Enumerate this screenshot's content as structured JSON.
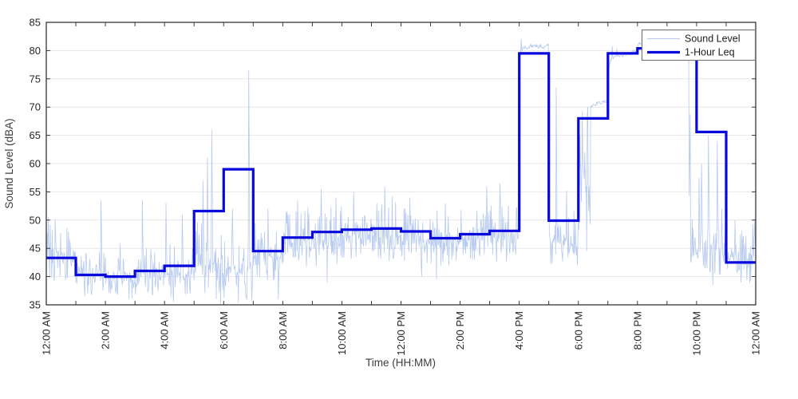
{
  "figure": {
    "background": "#ffffff"
  },
  "chart_data": {
    "type": "line",
    "title": "",
    "xlabel": "Time (HH:MM)",
    "ylabel": "Sound Level (dBA)",
    "ylim": [
      35,
      85
    ],
    "y_ticks": [
      35,
      40,
      45,
      50,
      55,
      60,
      65,
      70,
      75,
      80,
      85
    ],
    "x_range_hours": [
      0,
      24
    ],
    "x_tick_hours": [
      0,
      2,
      4,
      6,
      8,
      10,
      12,
      14,
      16,
      18,
      20,
      22,
      24
    ],
    "x_tick_labels": [
      "12:00 AM",
      "2:00 AM",
      "4:00 AM",
      "6:00 AM",
      "8:00 AM",
      "10:00 AM",
      "12:00 PM",
      "2:00 PM",
      "4:00 PM",
      "6:00 PM",
      "8:00 PM",
      "10:00 PM",
      "12:00 AM"
    ],
    "minor_tick_every_hours": 1,
    "grid": "horizontal",
    "colors": {
      "axis": "#262626",
      "grid": "#e7e7e7",
      "sound_level_line": "#b3c7ef",
      "leq_line": "#0808dc",
      "legend_border": "#777777",
      "legend_background": "#ffffff"
    },
    "legend": {
      "position": "top-right",
      "entries": [
        {
          "label": "Sound Level",
          "color": "#b3c7ef",
          "line_width": 1
        },
        {
          "label": "1-Hour Leq",
          "color": "#0808dc",
          "line_width": 3.2
        }
      ]
    },
    "series": [
      {
        "name": "1-Hour Leq",
        "kind": "hourly-step",
        "hour_start_times": [
          0,
          1,
          2,
          3,
          4,
          5,
          6,
          7,
          8,
          9,
          10,
          11,
          12,
          13,
          14,
          15,
          16,
          17,
          18,
          19,
          20,
          21,
          22,
          23
        ],
        "values": [
          43.3,
          40.3,
          40.0,
          41.0,
          41.9,
          51.6,
          59.0,
          44.5,
          46.9,
          47.9,
          48.3,
          48.5,
          48.0,
          46.8,
          47.5,
          48.1,
          79.5,
          49.9,
          68.0,
          79.5,
          80.4,
          80.5,
          65.6,
          42.5
        ],
        "note": "values in dBA; the 21:00-22:00 step is hidden behind the legend box in the original image"
      },
      {
        "name": "Sound Level",
        "kind": "noisy-minute-data",
        "sample_interval_minutes": 1,
        "hour_profile": [
          {
            "b": 43,
            "a": 3
          },
          {
            "b": 40.5,
            "a": 2.6
          },
          {
            "b": 39.5,
            "a": 2.4
          },
          {
            "b": 40,
            "a": 2.6
          },
          {
            "b": 40.5,
            "a": 3
          },
          {
            "b": 42,
            "a": 4
          },
          {
            "b": 42,
            "a": 4.2
          },
          {
            "b": 43.5,
            "a": 3
          },
          {
            "b": 46,
            "a": 3
          },
          {
            "b": 46.5,
            "a": 3.2
          },
          {
            "b": 47,
            "a": 3
          },
          {
            "b": 47,
            "a": 3.2
          },
          {
            "b": 46.5,
            "a": 3
          },
          {
            "b": 46,
            "a": 3
          },
          {
            "b": 46.5,
            "a": 3.2
          },
          {
            "b": 47,
            "a": 3.2
          },
          {
            "b": 80.7,
            "a": 0.9,
            "mode": "plateau",
            "lead": [
              62,
              79
            ]
          },
          {
            "b": 46,
            "a": 3,
            "lead": [
              58,
              48
            ]
          },
          {
            "parts": [
              {
                "to": 25,
                "b": 55,
                "a": 8
              },
              {
                "to": 60,
                "b": 69.8,
                "a": 0.8,
                "mode": "plateau",
                "slope": 1.2
              }
            ]
          },
          {
            "b": 78.5,
            "a": 0.7,
            "mode": "plateau",
            "slope": 1.5
          },
          {
            "b": 81.2,
            "a": 0.9,
            "mode": "plateau"
          },
          {
            "parts": [
              {
                "to": 45,
                "b": 80.2,
                "a": 0.7,
                "mode": "plateau"
              },
              {
                "to": 48,
                "b": 62,
                "a": 9
              },
              {
                "to": 60,
                "b": 44,
                "a": 2.5
              }
            ]
          },
          {
            "b": 44.5,
            "a": 3
          },
          {
            "b": 43,
            "a": 2.8
          }
        ],
        "spikes": [
          [
            0.03,
            47.8
          ],
          [
            0.06,
            50.5
          ],
          [
            0.13,
            49.2
          ],
          [
            0.3,
            50.2
          ],
          [
            0.75,
            48
          ],
          [
            1.85,
            53.5
          ],
          [
            2.5,
            45.8
          ],
          [
            3.25,
            53.5
          ],
          [
            4.05,
            53
          ],
          [
            4.6,
            51
          ],
          [
            5.3,
            57
          ],
          [
            5.45,
            61
          ],
          [
            5.6,
            66
          ],
          [
            6.3,
            52
          ],
          [
            6.85,
            76.5
          ],
          [
            7.5,
            52
          ],
          [
            8.5,
            53.5
          ],
          [
            8.85,
            52.3
          ],
          [
            9.3,
            55.5
          ],
          [
            9.8,
            54
          ],
          [
            10.4,
            55
          ],
          [
            11.45,
            56
          ],
          [
            11.7,
            54.2
          ],
          [
            12.3,
            54
          ],
          [
            13.5,
            53
          ],
          [
            14.9,
            56
          ],
          [
            15.35,
            56.5
          ],
          [
            16.07,
            82
          ],
          [
            17.25,
            73.5
          ],
          [
            17.6,
            55.2
          ],
          [
            18.05,
            64.8
          ],
          [
            18.13,
            69.3
          ],
          [
            18.22,
            62
          ],
          [
            19.15,
            80.8
          ],
          [
            19.3,
            80.4
          ],
          [
            20.25,
            82.6
          ],
          [
            20.33,
            82.3
          ],
          [
            21.85,
            50.2
          ],
          [
            22.08,
            57.5
          ],
          [
            22.17,
            60
          ],
          [
            22.4,
            65
          ],
          [
            22.7,
            64
          ],
          [
            22.85,
            52
          ],
          [
            23.3,
            50
          ],
          [
            23.9,
            49.3
          ],
          [
            23.97,
            50.2
          ]
        ],
        "dips": [
          [
            1.3,
            36.5
          ],
          [
            2.8,
            36
          ],
          [
            3.6,
            36.8
          ],
          [
            4.3,
            35.5
          ],
          [
            5.9,
            35.2
          ],
          [
            6.5,
            35.4
          ],
          [
            6.95,
            35.8
          ],
          [
            7.85,
            36
          ],
          [
            9.5,
            39
          ],
          [
            12.7,
            40
          ],
          [
            13.2,
            39.5
          ],
          [
            20.75,
            79.7
          ],
          [
            22.55,
            38.5
          ],
          [
            23.5,
            39
          ]
        ]
      }
    ]
  }
}
